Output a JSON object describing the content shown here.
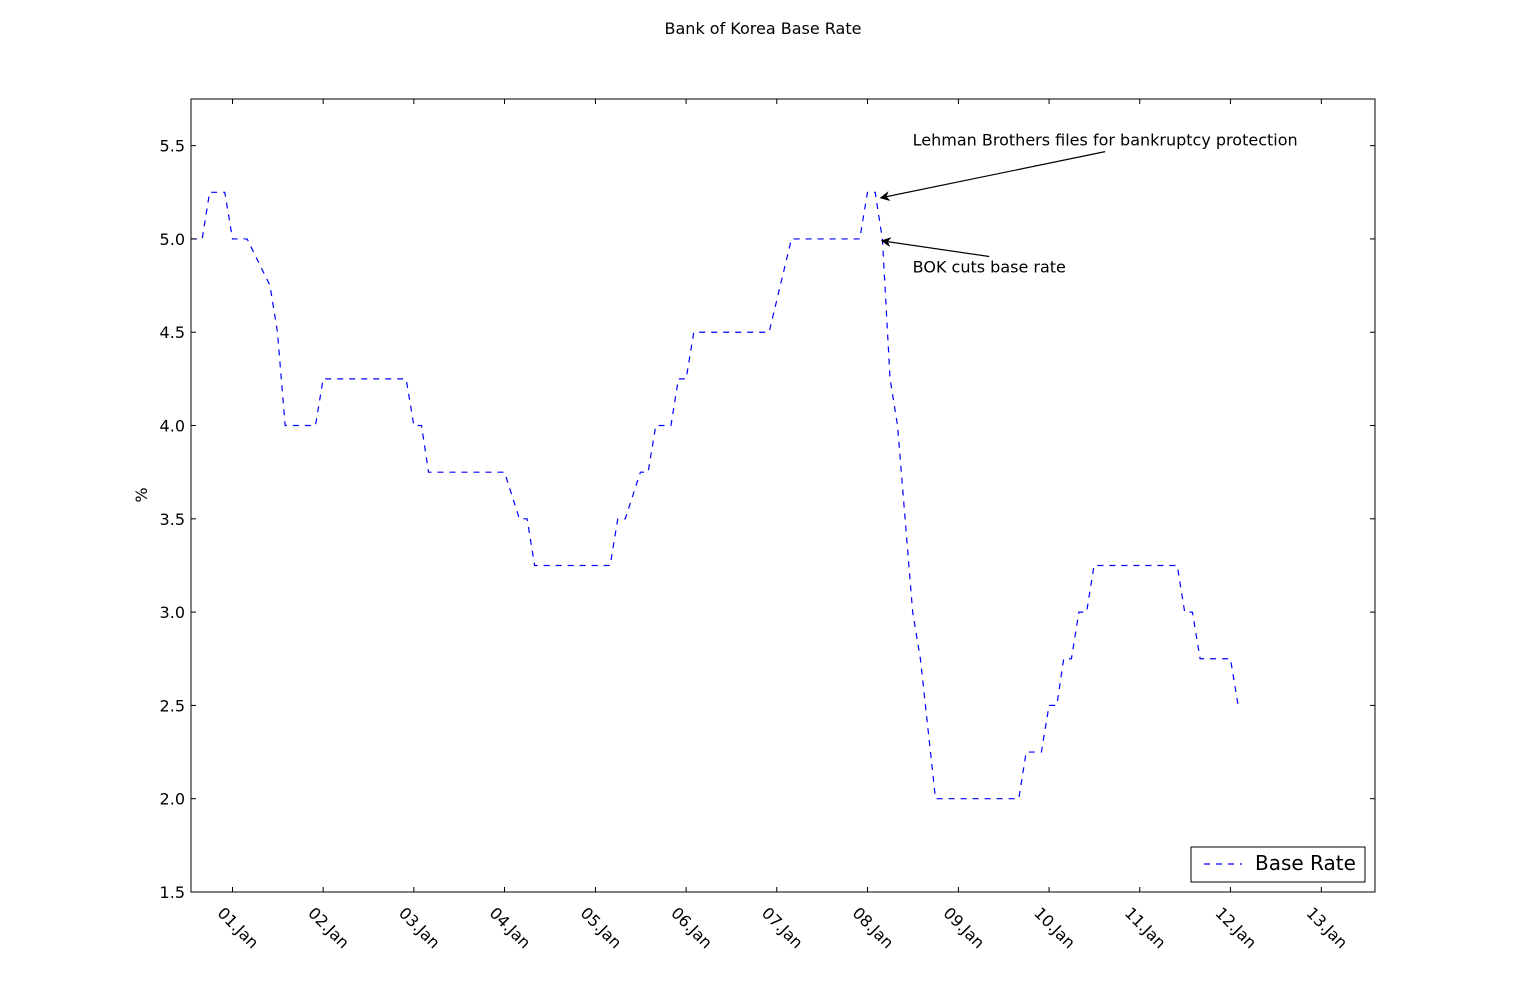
{
  "chart_data": {
    "type": "line",
    "title": "Bank of Korea Base Rate",
    "xlabel": "",
    "ylabel": "%",
    "ylim": [
      1.5,
      5.75
    ],
    "xlim": [
      "2000-07-18",
      "2013-08-05"
    ],
    "yticks": [
      "1.5",
      "2.0",
      "2.5",
      "3.0",
      "3.5",
      "4.0",
      "4.5",
      "5.0",
      "5.5"
    ],
    "xticks": [
      {
        "date": "2001-01-01",
        "label": "01.Jan"
      },
      {
        "date": "2002-01-01",
        "label": "02.Jan"
      },
      {
        "date": "2003-01-01",
        "label": "03.Jan"
      },
      {
        "date": "2004-01-01",
        "label": "04.Jan"
      },
      {
        "date": "2005-01-01",
        "label": "05.Jan"
      },
      {
        "date": "2006-01-01",
        "label": "06.Jan"
      },
      {
        "date": "2007-01-01",
        "label": "07.Jan"
      },
      {
        "date": "2008-01-01",
        "label": "08.Jan"
      },
      {
        "date": "2009-01-01",
        "label": "09.Jan"
      },
      {
        "date": "2010-01-01",
        "label": "10.Jan"
      },
      {
        "date": "2011-01-01",
        "label": "11.Jan"
      },
      {
        "date": "2012-01-01",
        "label": "12.Jan"
      },
      {
        "date": "2013-01-01",
        "label": "13.Jan"
      }
    ],
    "grid": false,
    "legend_position": "lower-right",
    "series": [
      {
        "name": "Base Rate",
        "color": "#0000ff",
        "linestyle": "dashed",
        "points": [
          [
            "2000-07-18",
            5.0
          ],
          [
            "2000-09-01",
            5.0
          ],
          [
            "2000-10-01",
            5.25
          ],
          [
            "2000-12-01",
            5.25
          ],
          [
            "2001-01-01",
            5.0
          ],
          [
            "2001-03-01",
            5.0
          ],
          [
            "2001-06-01",
            4.75
          ],
          [
            "2001-07-01",
            4.5
          ],
          [
            "2001-08-01",
            4.0
          ],
          [
            "2001-12-01",
            4.0
          ],
          [
            "2002-01-01",
            4.25
          ],
          [
            "2002-12-01",
            4.25
          ],
          [
            "2003-01-01",
            4.0
          ],
          [
            "2003-02-01",
            4.0
          ],
          [
            "2003-03-01",
            3.75
          ],
          [
            "2004-01-01",
            3.75
          ],
          [
            "2004-03-01",
            3.5
          ],
          [
            "2004-04-01",
            3.5
          ],
          [
            "2004-05-01",
            3.25
          ],
          [
            "2005-03-01",
            3.25
          ],
          [
            "2005-04-01",
            3.5
          ],
          [
            "2005-05-01",
            3.5
          ],
          [
            "2005-07-01",
            3.75
          ],
          [
            "2005-08-01",
            3.75
          ],
          [
            "2005-09-01",
            4.0
          ],
          [
            "2005-11-01",
            4.0
          ],
          [
            "2005-12-01",
            4.25
          ],
          [
            "2006-01-01",
            4.25
          ],
          [
            "2006-02-01",
            4.5
          ],
          [
            "2006-12-01",
            4.5
          ],
          [
            "2007-03-01",
            5.0
          ],
          [
            "2007-12-01",
            5.0
          ],
          [
            "2008-01-01",
            5.25
          ],
          [
            "2008-02-01",
            5.25
          ],
          [
            "2008-03-01",
            5.0
          ],
          [
            "2008-04-01",
            4.25
          ],
          [
            "2008-05-01",
            4.0
          ],
          [
            "2008-07-01",
            3.0
          ],
          [
            "2008-08-01",
            2.75
          ],
          [
            "2008-10-01",
            2.0
          ],
          [
            "2009-09-01",
            2.0
          ],
          [
            "2009-10-01",
            2.25
          ],
          [
            "2009-12-01",
            2.25
          ],
          [
            "2010-01-01",
            2.5
          ],
          [
            "2010-02-01",
            2.5
          ],
          [
            "2010-03-01",
            2.75
          ],
          [
            "2010-04-01",
            2.75
          ],
          [
            "2010-05-01",
            3.0
          ],
          [
            "2010-06-01",
            3.0
          ],
          [
            "2010-07-01",
            3.25
          ],
          [
            "2011-06-01",
            3.25
          ],
          [
            "2011-07-01",
            3.0
          ],
          [
            "2011-08-01",
            3.0
          ],
          [
            "2011-09-01",
            2.75
          ],
          [
            "2012-01-01",
            2.75
          ],
          [
            "2012-02-01",
            2.5
          ]
        ]
      }
    ],
    "annotations": [
      {
        "text": "Lehman Brothers files for bankruptcy protection",
        "point": [
          "2008-02-15",
          5.22
        ],
        "text_anchor": [
          "2008-07-01",
          5.5
        ]
      },
      {
        "text": "BOK cuts base rate",
        "point": [
          "2008-02-20",
          4.99
        ],
        "text_anchor": [
          "2008-07-01",
          4.82
        ]
      }
    ]
  }
}
